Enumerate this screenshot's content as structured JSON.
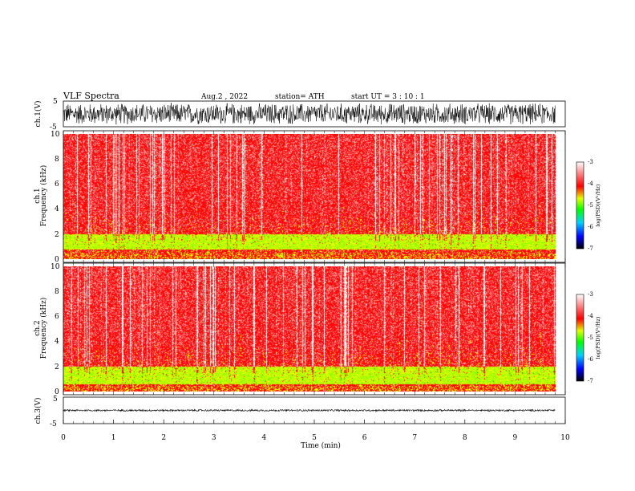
{
  "header": {
    "title": "VLF  Spectra",
    "date": "Aug.2   , 2022",
    "station": "station= ATH",
    "start": "start  UT  =    3  : 10 : 1"
  },
  "chart_data": [
    {
      "id": "ch1-waveform",
      "type": "line",
      "ylabel": "ch.1(V)",
      "ylim": [
        -5,
        5
      ],
      "yticks": [
        "5",
        "-5"
      ],
      "x_range": [
        0,
        9.8
      ],
      "amplitude_band": [
        -4.5,
        4.5
      ]
    },
    {
      "id": "ch1-spectrogram",
      "type": "heatmap",
      "ylabel": "Frequency (kHz)",
      "channel_label": "ch.1",
      "ylim": [
        0,
        10
      ],
      "yticks": [
        "0",
        "2",
        "4",
        "6",
        "8",
        "10"
      ],
      "x_range": [
        0,
        9.8
      ],
      "intense_band_khz": [
        0.8,
        2.0
      ],
      "colorbar": {
        "label": "log(PSD)(V²/Hz)",
        "range": [
          -7,
          -3
        ],
        "ticks": [
          "-3",
          "-4",
          "-5",
          "-6",
          "-7"
        ]
      }
    },
    {
      "id": "ch2-spectrogram",
      "type": "heatmap",
      "ylabel": "Frequency (kHz)",
      "channel_label": "ch.2",
      "ylim": [
        0,
        10
      ],
      "yticks": [
        "0",
        "2",
        "4",
        "6",
        "8",
        "10"
      ],
      "x_range": [
        0,
        9.8
      ],
      "intense_band_khz": [
        0.6,
        2.0
      ],
      "colorbar": {
        "label": "log(PSD)(V²/Hz)",
        "range": [
          -7,
          -3
        ],
        "ticks": [
          "-3",
          "-4",
          "-5",
          "-6",
          "-7"
        ]
      }
    },
    {
      "id": "ch3-waveform",
      "type": "line",
      "ylabel": "ch.3(V)",
      "ylim": [
        -5,
        5
      ],
      "yticks": [
        "5",
        "-5"
      ],
      "x_range": [
        0,
        9.8
      ],
      "amplitude_band": [
        -0.4,
        0.4
      ]
    }
  ],
  "xaxis": {
    "label": "Time  (min)",
    "range": [
      0,
      10
    ],
    "ticks": [
      "0",
      "1",
      "2",
      "3",
      "4",
      "5",
      "6",
      "7",
      "8",
      "9",
      "10"
    ]
  },
  "colors": {
    "waveform": "#000000",
    "colormap": [
      "#000000",
      "#0000ff",
      "#00d0ff",
      "#00ff00",
      "#e0ff00",
      "#ff0000",
      "#ff9090",
      "#ffffff"
    ]
  }
}
